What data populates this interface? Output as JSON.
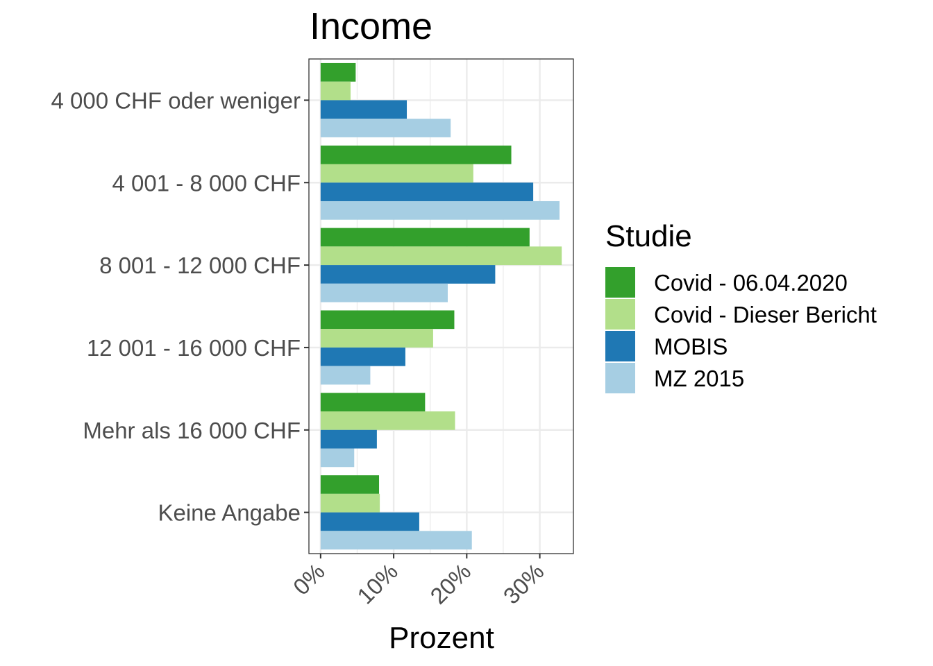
{
  "chart_data": {
    "type": "bar",
    "orientation": "horizontal",
    "title": "Income",
    "xlabel": "Prozent",
    "ylabel": "",
    "categories": [
      "4 000 CHF oder weniger",
      "4 001 - 8 000 CHF",
      "8 001 - 12 000 CHF",
      "12 001 - 16 000 CHF",
      "Mehr als 16 000 CHF",
      "Keine Angabe"
    ],
    "series": [
      {
        "name": "Covid - 06.04.2020",
        "color": "#33a02c",
        "values": [
          4.8,
          26.1,
          28.6,
          18.3,
          14.3,
          8.0
        ]
      },
      {
        "name": "Covid - Dieser Bericht",
        "color": "#b2df8a",
        "values": [
          4.1,
          20.9,
          33.0,
          15.4,
          18.4,
          8.1
        ]
      },
      {
        "name": "MOBIS",
        "color": "#1f78b4",
        "values": [
          11.8,
          29.1,
          23.9,
          11.6,
          7.7,
          13.5
        ]
      },
      {
        "name": "MZ 2015",
        "color": "#a6cee3",
        "values": [
          17.8,
          32.7,
          17.4,
          6.8,
          4.6,
          20.7
        ]
      }
    ],
    "xlim": [
      -1.6,
      34.6
    ],
    "xticks": [
      0,
      10,
      20,
      30
    ],
    "xtick_labels": [
      "0%",
      "10%",
      "20%",
      "30%"
    ],
    "grid": true,
    "legend": {
      "title": "Studie",
      "position": "right"
    }
  }
}
